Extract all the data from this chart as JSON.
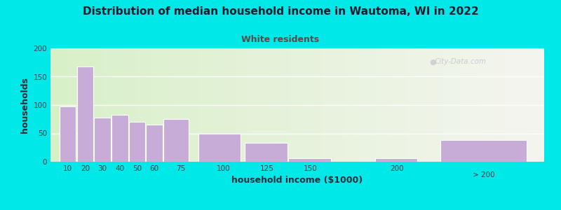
{
  "title": "Distribution of median household income in Wautoma, WI in 2022",
  "subtitle": "White residents",
  "xlabel": "household income ($1000)",
  "ylabel": "households",
  "bg_outer": "#00e8e8",
  "bg_plot_left": "#d8f0c8",
  "bg_plot_right": "#f5f5f0",
  "bar_color": "#c8acd8",
  "bar_edge_color": "#ffffff",
  "title_color": "#1a1a2e",
  "subtitle_color": "#5a4a4a",
  "axis_label_color": "#2a2a3a",
  "tick_color": "#3a3a4a",
  "watermark": "City-Data.com",
  "categories": [
    "10",
    "20",
    "30",
    "40",
    "50",
    "60",
    "75",
    "100",
    "125",
    "150",
    "200",
    "> 200"
  ],
  "values": [
    97,
    168,
    78,
    83,
    70,
    65,
    75,
    50,
    33,
    6,
    6,
    38
  ],
  "bar_lefts": [
    5,
    15,
    25,
    35,
    45,
    55,
    65,
    85,
    112,
    137,
    187,
    225
  ],
  "bar_widths": [
    10,
    10,
    10,
    10,
    10,
    10,
    15,
    25,
    25,
    25,
    25,
    50
  ],
  "xtick_pos": [
    10,
    20,
    30,
    40,
    50,
    60,
    75,
    100,
    125,
    150,
    200
  ],
  "xtick_labels": [
    "10",
    "20",
    "30",
    "40",
    "50",
    "60",
    "75",
    "100",
    "125",
    "150",
    "200"
  ],
  "xlim": [
    0,
    285
  ],
  "ylim": [
    0,
    200
  ],
  "yticks": [
    0,
    50,
    100,
    150,
    200
  ]
}
